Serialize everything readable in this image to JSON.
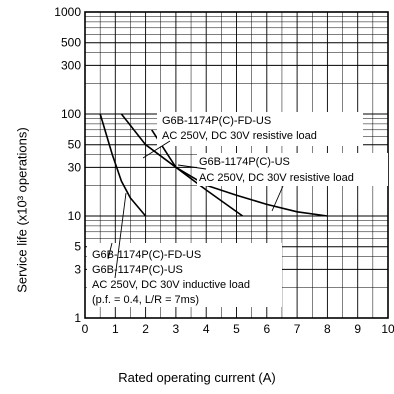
{
  "chart_data": {
    "type": "line",
    "title": "",
    "xlabel": "Rated operating current (A)",
    "ylabel": "Service life (x10³ operations)",
    "xlim": [
      0,
      10
    ],
    "ylim": [
      1,
      1000
    ],
    "y_scale": "log",
    "grid": true,
    "x_ticks": [
      "0",
      "1",
      "2",
      "3",
      "4",
      "5",
      "6",
      "7",
      "8",
      "9",
      "10"
    ],
    "y_ticks": [
      {
        "value": 1,
        "label": "1"
      },
      {
        "value": 3,
        "label": "3"
      },
      {
        "value": 5,
        "label": "5"
      },
      {
        "value": 10,
        "label": "10"
      },
      {
        "value": 30,
        "label": "30"
      },
      {
        "value": 50,
        "label": "50"
      },
      {
        "value": 100,
        "label": "100"
      },
      {
        "value": 300,
        "label": "300"
      },
      {
        "value": 500,
        "label": "500"
      },
      {
        "value": 1000,
        "label": "1000"
      }
    ],
    "series": [
      {
        "key": "inductive",
        "points": [
          [
            0.5,
            100
          ],
          [
            0.9,
            40
          ],
          [
            1.2,
            22
          ],
          [
            1.5,
            15
          ],
          [
            2.0,
            10
          ]
        ]
      },
      {
        "key": "fd_resistive",
        "points": [
          [
            1.2,
            100
          ],
          [
            2.0,
            50
          ],
          [
            3.0,
            30
          ],
          [
            4.0,
            18
          ],
          [
            5.2,
            10
          ]
        ]
      },
      {
        "key": "resistive",
        "points": [
          [
            2.2,
            70
          ],
          [
            3.0,
            30
          ],
          [
            4.0,
            20
          ],
          [
            5.0,
            16
          ],
          [
            6.0,
            13
          ],
          [
            7.0,
            11
          ],
          [
            8.0,
            10
          ]
        ]
      }
    ],
    "annotations": [
      {
        "key": "fd_res_1",
        "text": "G6B-1174P(C)-FD-US"
      },
      {
        "key": "fd_res_2",
        "text": "AC 250V, DC 30V resistive load"
      },
      {
        "key": "res_1",
        "text": "G6B-1174P(C)-US"
      },
      {
        "key": "res_2",
        "text": "AC 250V, DC 30V resistive load"
      },
      {
        "key": "ind_1",
        "text": "G6B-1174P(C)-FD-US"
      },
      {
        "key": "ind_2",
        "text": "G6B-1174P(C)-US"
      },
      {
        "key": "ind_3",
        "text": "AC 250V, DC 30V inductive load"
      },
      {
        "key": "ind_4",
        "text": "(p.f. = 0.4, L/R = 7ms)"
      }
    ]
  }
}
